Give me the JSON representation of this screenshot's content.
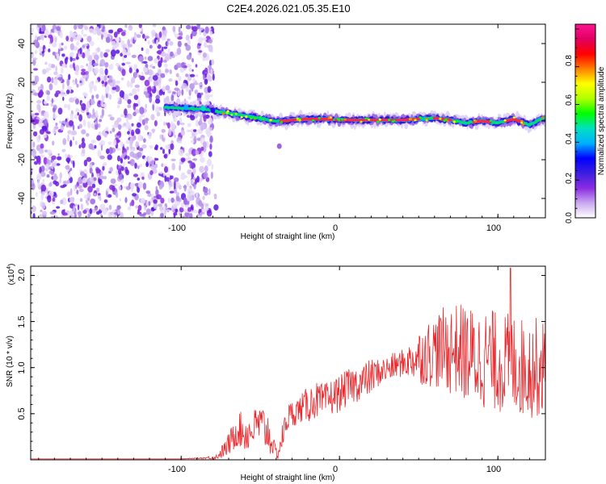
{
  "chart_data": [
    {
      "type": "heatmap",
      "title": "C2E4.2026.021.05.35.E10",
      "xlabel": "Height of straight line (km)",
      "ylabel": "Frequency (Hz)",
      "xlim": [
        -195,
        130
      ],
      "ylim": [
        -50,
        50
      ],
      "x_ticks": [
        -100,
        0,
        100
      ],
      "y_ticks": [
        -40,
        -20,
        0,
        20,
        40
      ],
      "noise_region_x": [
        -195,
        -80
      ],
      "ridge": {
        "x": [
          -110,
          -95,
          -85,
          -78,
          -70,
          -62,
          -55,
          -48,
          -42,
          -36,
          -30,
          -20,
          -10,
          0,
          10,
          20,
          30,
          40,
          50,
          60,
          70,
          80,
          90,
          100,
          110,
          120,
          130
        ],
        "frequency": [
          7,
          6.5,
          6,
          5,
          4,
          3,
          2,
          1,
          0,
          0,
          0.5,
          1,
          1,
          0.5,
          0.5,
          0.5,
          0.5,
          0.5,
          1,
          1.5,
          0.5,
          -1,
          0,
          -1,
          1,
          -2,
          2
        ]
      },
      "colorbar": {
        "label": "Normalized spectral amplitude",
        "range": [
          0,
          1
        ],
        "ticks": [
          "0.0",
          "0.2",
          "0.4",
          "0.6",
          "0.8"
        ],
        "colors": [
          "#ffffff",
          "#c9a8f0",
          "#8a2be2",
          "#3b1ee0",
          "#0000ff",
          "#00b0ff",
          "#00e0c0",
          "#00ff00",
          "#b0ff00",
          "#ffff00",
          "#ff8000",
          "#ff0000",
          "#e00060",
          "#ff1493"
        ]
      }
    },
    {
      "type": "line",
      "xlabel": "Height of straight line (km)",
      "ylabel": "SNR (10 * v/v)",
      "scale_label": "(x10",
      "scale_exponent": "4",
      "scale_suffix": ")",
      "xlim": [
        -195,
        130
      ],
      "ylim": [
        0,
        2.1
      ],
      "x_ticks": [
        -100,
        0,
        100
      ],
      "y_ticks": [
        "0.5",
        "1.0",
        "1.5",
        "2.0"
      ],
      "series": [
        {
          "name": "SNR",
          "color": "#e8282c",
          "x": [
            -195,
            -170,
            -150,
            -120,
            -100,
            -85,
            -78,
            -72,
            -68,
            -64,
            -60,
            -56,
            -52,
            -48,
            -45,
            -42,
            -39,
            -36,
            -33,
            -30,
            -25,
            -20,
            -15,
            -10,
            -5,
            0,
            5,
            10,
            15,
            20,
            25,
            30,
            35,
            40,
            45,
            50,
            55,
            60,
            65,
            70,
            75,
            80,
            85,
            90,
            95,
            100,
            105,
            110,
            115,
            120,
            125,
            130
          ],
          "y": [
            0.01,
            0.01,
            0.01,
            0.01,
            0.01,
            0.02,
            0.03,
            0.12,
            0.22,
            0.35,
            0.28,
            0.3,
            0.4,
            0.35,
            0.3,
            0.15,
            0.05,
            0.25,
            0.45,
            0.5,
            0.55,
            0.6,
            0.65,
            0.62,
            0.68,
            0.72,
            0.78,
            0.82,
            0.85,
            0.9,
            0.95,
            0.98,
            1.02,
            1.05,
            1.08,
            1.12,
            1.15,
            1.18,
            1.2,
            1.2,
            1.2,
            1.15,
            1.1,
            1.1,
            1.1,
            1.05,
            1.05,
            1.05,
            1.0,
            1.0,
            1.0,
            1.0
          ],
          "spread": [
            0,
            0,
            0,
            0,
            0,
            0.01,
            0.03,
            0.1,
            0.15,
            0.2,
            0.2,
            0.2,
            0.2,
            0.25,
            0.25,
            0.1,
            0.05,
            0.15,
            0.15,
            0.15,
            0.15,
            0.2,
            0.2,
            0.2,
            0.2,
            0.2,
            0.2,
            0.2,
            0.2,
            0.2,
            0.15,
            0.15,
            0.15,
            0.15,
            0.2,
            0.3,
            0.35,
            0.4,
            0.45,
            0.5,
            0.5,
            0.55,
            0.55,
            0.55,
            0.55,
            0.55,
            0.55,
            0.55,
            0.55,
            0.55,
            0.55,
            0.5
          ],
          "peak": 2.08
        }
      ]
    }
  ]
}
